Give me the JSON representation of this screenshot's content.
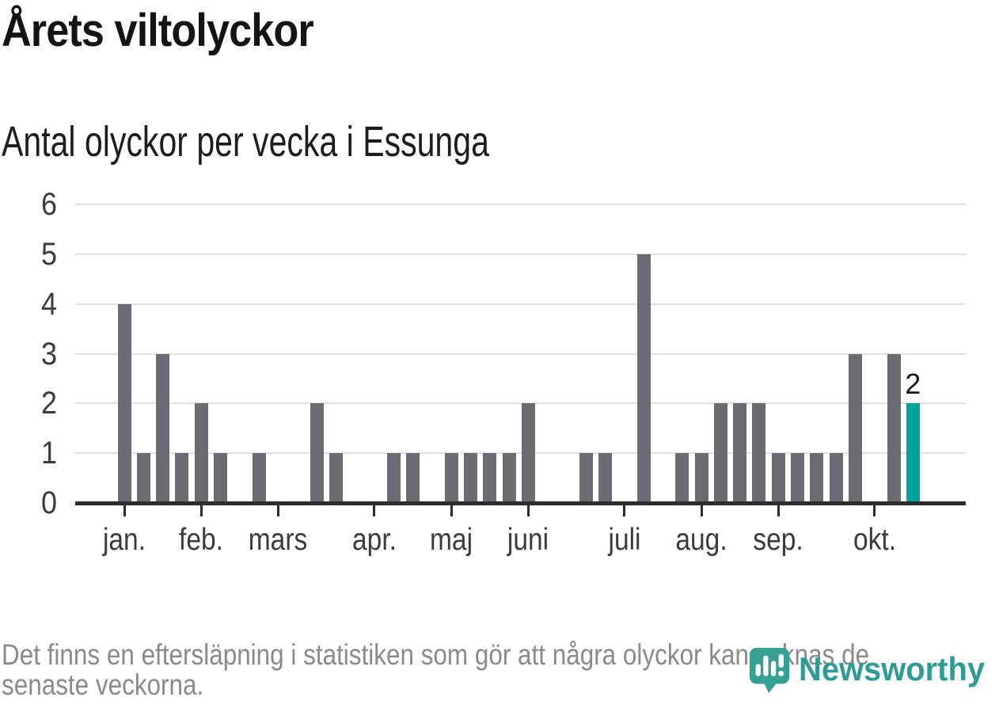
{
  "header": {
    "title": "Årets viltolyckor",
    "subtitle": "Antal olyckor per vecka i Essunga"
  },
  "chart_data": {
    "type": "bar",
    "title": "Årets viltolyckor",
    "subtitle": "Antal olyckor per vecka i Essunga",
    "ylabel": "",
    "xlabel": "",
    "ylim": [
      0,
      6
    ],
    "yticks": [
      0,
      1,
      2,
      3,
      4,
      5,
      6
    ],
    "grid": true,
    "categories_note": "one bar per week of the year, weeks 1-42",
    "values": [
      4,
      1,
      3,
      1,
      2,
      1,
      0,
      1,
      0,
      0,
      2,
      1,
      0,
      0,
      1,
      1,
      0,
      1,
      1,
      1,
      1,
      2,
      0,
      0,
      1,
      1,
      0,
      5,
      0,
      1,
      1,
      2,
      2,
      2,
      1,
      1,
      1,
      1,
      3,
      0,
      3,
      2
    ],
    "month_ticks": [
      {
        "label": "jan.",
        "index": 0
      },
      {
        "label": "feb.",
        "index": 4
      },
      {
        "label": "mars",
        "index": 8
      },
      {
        "label": "apr.",
        "index": 13
      },
      {
        "label": "maj",
        "index": 17
      },
      {
        "label": "juni",
        "index": 21
      },
      {
        "label": "juli",
        "index": 26
      },
      {
        "label": "aug.",
        "index": 30
      },
      {
        "label": "sep.",
        "index": 34
      },
      {
        "label": "okt.",
        "index": 39
      }
    ],
    "highlight_index": 41,
    "annotation": {
      "index": 41,
      "label": "2"
    },
    "bar_color": "#6b6b71",
    "highlight_color": "#00a49a",
    "legend": "none"
  },
  "footer": {
    "line1": "Det finns en eftersläpning i statistiken som gör att några olyckor kan saknas de",
    "line2": "senaste veckorna."
  },
  "logo": {
    "name": "Newsworthy",
    "icon": "newsworthy-bubble-chart-icon",
    "icon_color": "#35a093",
    "text_color": "#2e9c94"
  }
}
